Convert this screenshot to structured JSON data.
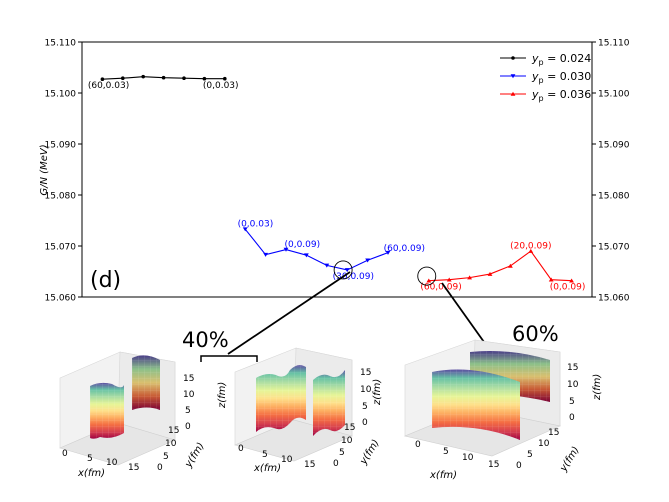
{
  "chart_data": {
    "type": "line",
    "panel_label": "(d)",
    "ylabel": "G/N (MeV)",
    "ylim": [
      15.06,
      15.11
    ],
    "y_ticks": [
      "15.060",
      "15.070",
      "15.080",
      "15.090",
      "15.100",
      "15.110"
    ],
    "y_tick_values": [
      15.06,
      15.07,
      15.08,
      15.09,
      15.1,
      15.11
    ],
    "x_index_range": [
      0,
      25
    ],
    "legend_position": "top-right",
    "series": [
      {
        "name": "y_p = 0.024",
        "legend_label": "y",
        "legend_sub": "p",
        "legend_value": " = 0.024",
        "color": "#000000",
        "marker": "circle",
        "x_index": [
          1,
          2,
          3,
          4,
          5,
          6,
          7
        ],
        "values": [
          15.1027,
          15.1029,
          15.1032,
          15.103,
          15.1029,
          15.1028,
          15.1028
        ]
      },
      {
        "name": "y_p = 0.030",
        "legend_label": "y",
        "legend_sub": "p",
        "legend_value": " = 0.030",
        "color": "#0000ff",
        "marker": "triangle-down",
        "x_index": [
          8,
          9,
          10,
          11,
          12,
          13,
          14,
          15
        ],
        "values": [
          15.0733,
          15.0683,
          15.0693,
          15.0682,
          15.0662,
          15.0653,
          15.0672,
          15.0687
        ]
      },
      {
        "name": "y_p = 0.036",
        "legend_label": "y",
        "legend_sub": "p",
        "legend_value": " = 0.036",
        "color": "#ff0000",
        "marker": "triangle-up",
        "x_index": [
          17,
          18,
          19,
          20,
          21,
          22,
          23,
          24
        ],
        "values": [
          15.0632,
          15.0634,
          15.0638,
          15.0645,
          15.0661,
          15.069,
          15.0634,
          15.0632
        ]
      }
    ],
    "annotations": [
      {
        "text": "(60,0.03)",
        "color": "#000000",
        "x_index": 1.3,
        "value": 15.1017
      },
      {
        "text": "(0,0.03)",
        "color": "#000000",
        "x_index": 6.8,
        "value": 15.1017
      },
      {
        "text": "(0,0.03)",
        "color": "#0000ff",
        "x_index": 8.5,
        "value": 15.0745
      },
      {
        "text": "(0,0.09)",
        "color": "#0000ff",
        "x_index": 10.8,
        "value": 15.0705
      },
      {
        "text": "(30,0.09)",
        "color": "#0000ff",
        "x_index": 13.3,
        "value": 15.0642
      },
      {
        "text": "(60,0.09)",
        "color": "#0000ff",
        "x_index": 15.8,
        "value": 15.0697
      },
      {
        "text": "(60,0.09)",
        "color": "#ff0000",
        "x_index": 17.6,
        "value": 15.0622
      },
      {
        "text": "(20,0.09)",
        "color": "#ff0000",
        "x_index": 22.0,
        "value": 15.0702
      },
      {
        "text": "(0,0.09)",
        "color": "#ff0000",
        "x_index": 23.8,
        "value": 15.0622
      }
    ],
    "highlights": [
      {
        "x_index": 12.8,
        "value": 15.0653,
        "inset": "40%"
      },
      {
        "x_index": 16.9,
        "value": 15.0641,
        "inset": "60%"
      }
    ]
  },
  "insets": {
    "percent_labels": [
      "40%",
      "60%"
    ],
    "x_axis_label": "x(fm)",
    "y_axis_label": "y(fm)",
    "z_axis_label": "z(fm)",
    "x_ticks": [
      "0",
      "5",
      "10",
      "15"
    ],
    "y_ticks": [
      "0",
      "5",
      "10",
      "15"
    ],
    "z_ticks": [
      "0",
      "5",
      "10",
      "15"
    ]
  }
}
